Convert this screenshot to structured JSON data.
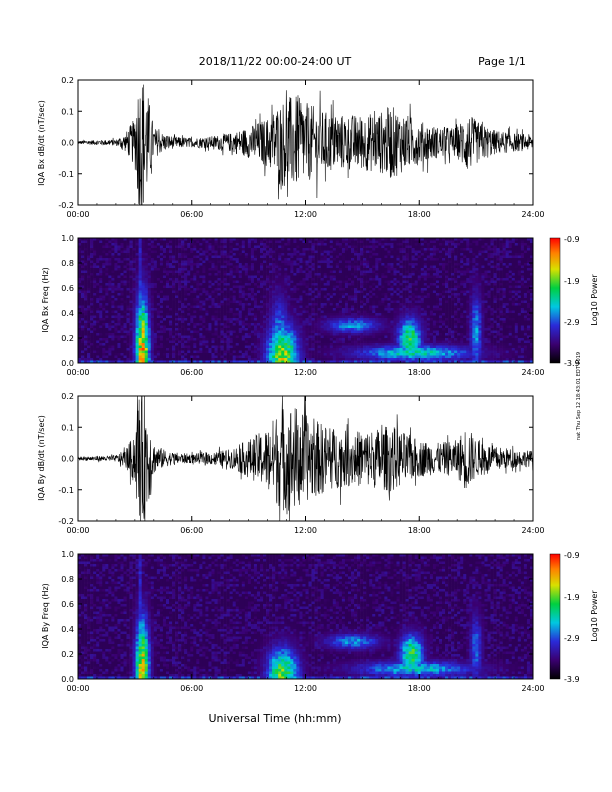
{
  "header": {
    "title": "2018/11/22  00:00-24:00 UT",
    "page": "Page 1/1"
  },
  "footer": {
    "xlabel": "Universal Time (hh:mm)",
    "side_note": "nat Thu Sep 12 18:43:01 EDT 2019"
  },
  "chart_data": [
    {
      "id": "bx-dbdt",
      "type": "line",
      "ylabel": "IQA Bx dB/dt (nT/sec)",
      "xlim": [
        0,
        24
      ],
      "ylim": [
        -0.2,
        0.2
      ],
      "xticks": [
        "00:00",
        "06:00",
        "12:00",
        "18:00",
        "24:00"
      ],
      "yticks": [
        "0.2",
        "0.1",
        "0.0",
        "-0.1",
        "-0.2"
      ],
      "envelope_hours": [
        0,
        1,
        2,
        2.5,
        3,
        3.2,
        3.5,
        3.8,
        4,
        4.5,
        5,
        6,
        7,
        8,
        9,
        10,
        10.5,
        11,
        11.5,
        12,
        13,
        14,
        15,
        16,
        16.5,
        17,
        18,
        19,
        20,
        20.5,
        21,
        22,
        23,
        24
      ],
      "envelope_amp": [
        0.006,
        0.008,
        0.01,
        0.03,
        0.08,
        0.22,
        0.22,
        0.12,
        0.05,
        0.03,
        0.02,
        0.015,
        0.02,
        0.03,
        0.05,
        0.08,
        0.12,
        0.15,
        0.15,
        0.13,
        0.1,
        0.09,
        0.09,
        0.1,
        0.12,
        0.1,
        0.07,
        0.05,
        0.05,
        0.1,
        0.07,
        0.04,
        0.03,
        0.025
      ],
      "color": "#000000"
    },
    {
      "id": "bx-freq",
      "type": "heatmap",
      "ylabel": "IQA Bx Freq (Hz)",
      "xlim": [
        0,
        24
      ],
      "ylim": [
        0,
        1
      ],
      "xticks": [
        "00:00",
        "06:00",
        "12:00",
        "18:00",
        "24:00"
      ],
      "yticks": [
        "1.0",
        "0.8",
        "0.6",
        "0.4",
        "0.2",
        "0.0"
      ],
      "colorbar": {
        "label": "Log10 Power",
        "ticks": [
          "-0.9",
          "-1.9",
          "-2.9",
          "-3.9"
        ],
        "range": [
          -3.9,
          -0.9
        ]
      },
      "hotspots": [
        {
          "t": 3.4,
          "f": 0.05,
          "dt": 0.35,
          "df": 0.45,
          "v": -1.4
        },
        {
          "t": 3.3,
          "f": 0.5,
          "dt": 0.1,
          "df": 0.9,
          "v": -3.0
        },
        {
          "t": 10.8,
          "f": 0.04,
          "dt": 0.8,
          "df": 0.25,
          "v": -1.8
        },
        {
          "t": 10.6,
          "f": 0.2,
          "dt": 0.5,
          "df": 0.3,
          "v": -2.7
        },
        {
          "t": 14.5,
          "f": 0.3,
          "dt": 1.4,
          "df": 0.06,
          "v": -2.7
        },
        {
          "t": 17.5,
          "f": 0.2,
          "dt": 0.6,
          "df": 0.15,
          "v": -2.1
        },
        {
          "t": 17.8,
          "f": 0.08,
          "dt": 3.0,
          "df": 0.06,
          "v": -2.4
        },
        {
          "t": 21.0,
          "f": 0.25,
          "dt": 0.3,
          "df": 0.3,
          "v": -2.7
        }
      ]
    },
    {
      "id": "by-dbdt",
      "type": "line",
      "ylabel": "IQA By dB/dt (nT/sec)",
      "xlim": [
        0,
        24
      ],
      "ylim": [
        -0.2,
        0.2
      ],
      "xticks": [
        "00:00",
        "06:00",
        "12:00",
        "18:00",
        "24:00"
      ],
      "yticks": [
        "0.2",
        "0.1",
        "0.0",
        "-0.1",
        "-0.2"
      ],
      "envelope_hours": [
        0,
        1,
        2,
        2.5,
        3,
        3.2,
        3.5,
        3.8,
        4,
        4.5,
        5,
        6,
        7,
        8,
        9,
        10,
        10.5,
        11,
        11.5,
        12,
        13,
        14,
        15,
        16,
        16.5,
        17,
        18,
        19,
        20,
        20.5,
        21,
        22,
        23,
        24
      ],
      "envelope_amp": [
        0.006,
        0.008,
        0.01,
        0.03,
        0.08,
        0.22,
        0.22,
        0.12,
        0.05,
        0.03,
        0.02,
        0.015,
        0.02,
        0.03,
        0.06,
        0.1,
        0.15,
        0.18,
        0.17,
        0.14,
        0.11,
        0.09,
        0.09,
        0.1,
        0.11,
        0.09,
        0.06,
        0.05,
        0.06,
        0.11,
        0.06,
        0.04,
        0.03,
        0.025
      ],
      "color": "#000000"
    },
    {
      "id": "by-freq",
      "type": "heatmap",
      "ylabel": "IQA By Freq (Hz)",
      "xlim": [
        0,
        24
      ],
      "ylim": [
        0,
        1
      ],
      "xticks": [
        "00:00",
        "06:00",
        "12:00",
        "18:00",
        "24:00"
      ],
      "yticks": [
        "1.0",
        "0.8",
        "0.6",
        "0.4",
        "0.2",
        "0.0"
      ],
      "colorbar": {
        "label": "Log10 Power",
        "ticks": [
          "-0.9",
          "-1.9",
          "-2.9",
          "-3.9"
        ],
        "range": [
          -3.9,
          -0.9
        ]
      },
      "hotspots": [
        {
          "t": 3.4,
          "f": 0.05,
          "dt": 0.35,
          "df": 0.4,
          "v": -1.5
        },
        {
          "t": 3.3,
          "f": 0.5,
          "dt": 0.1,
          "df": 0.9,
          "v": -3.0
        },
        {
          "t": 10.8,
          "f": 0.04,
          "dt": 0.8,
          "df": 0.2,
          "v": -2.0
        },
        {
          "t": 14.5,
          "f": 0.3,
          "dt": 1.4,
          "df": 0.06,
          "v": -2.7
        },
        {
          "t": 17.6,
          "f": 0.2,
          "dt": 0.6,
          "df": 0.15,
          "v": -2.1
        },
        {
          "t": 17.8,
          "f": 0.08,
          "dt": 3.0,
          "df": 0.06,
          "v": -2.5
        },
        {
          "t": 21.0,
          "f": 0.25,
          "dt": 0.3,
          "df": 0.25,
          "v": -2.8
        }
      ]
    }
  ]
}
